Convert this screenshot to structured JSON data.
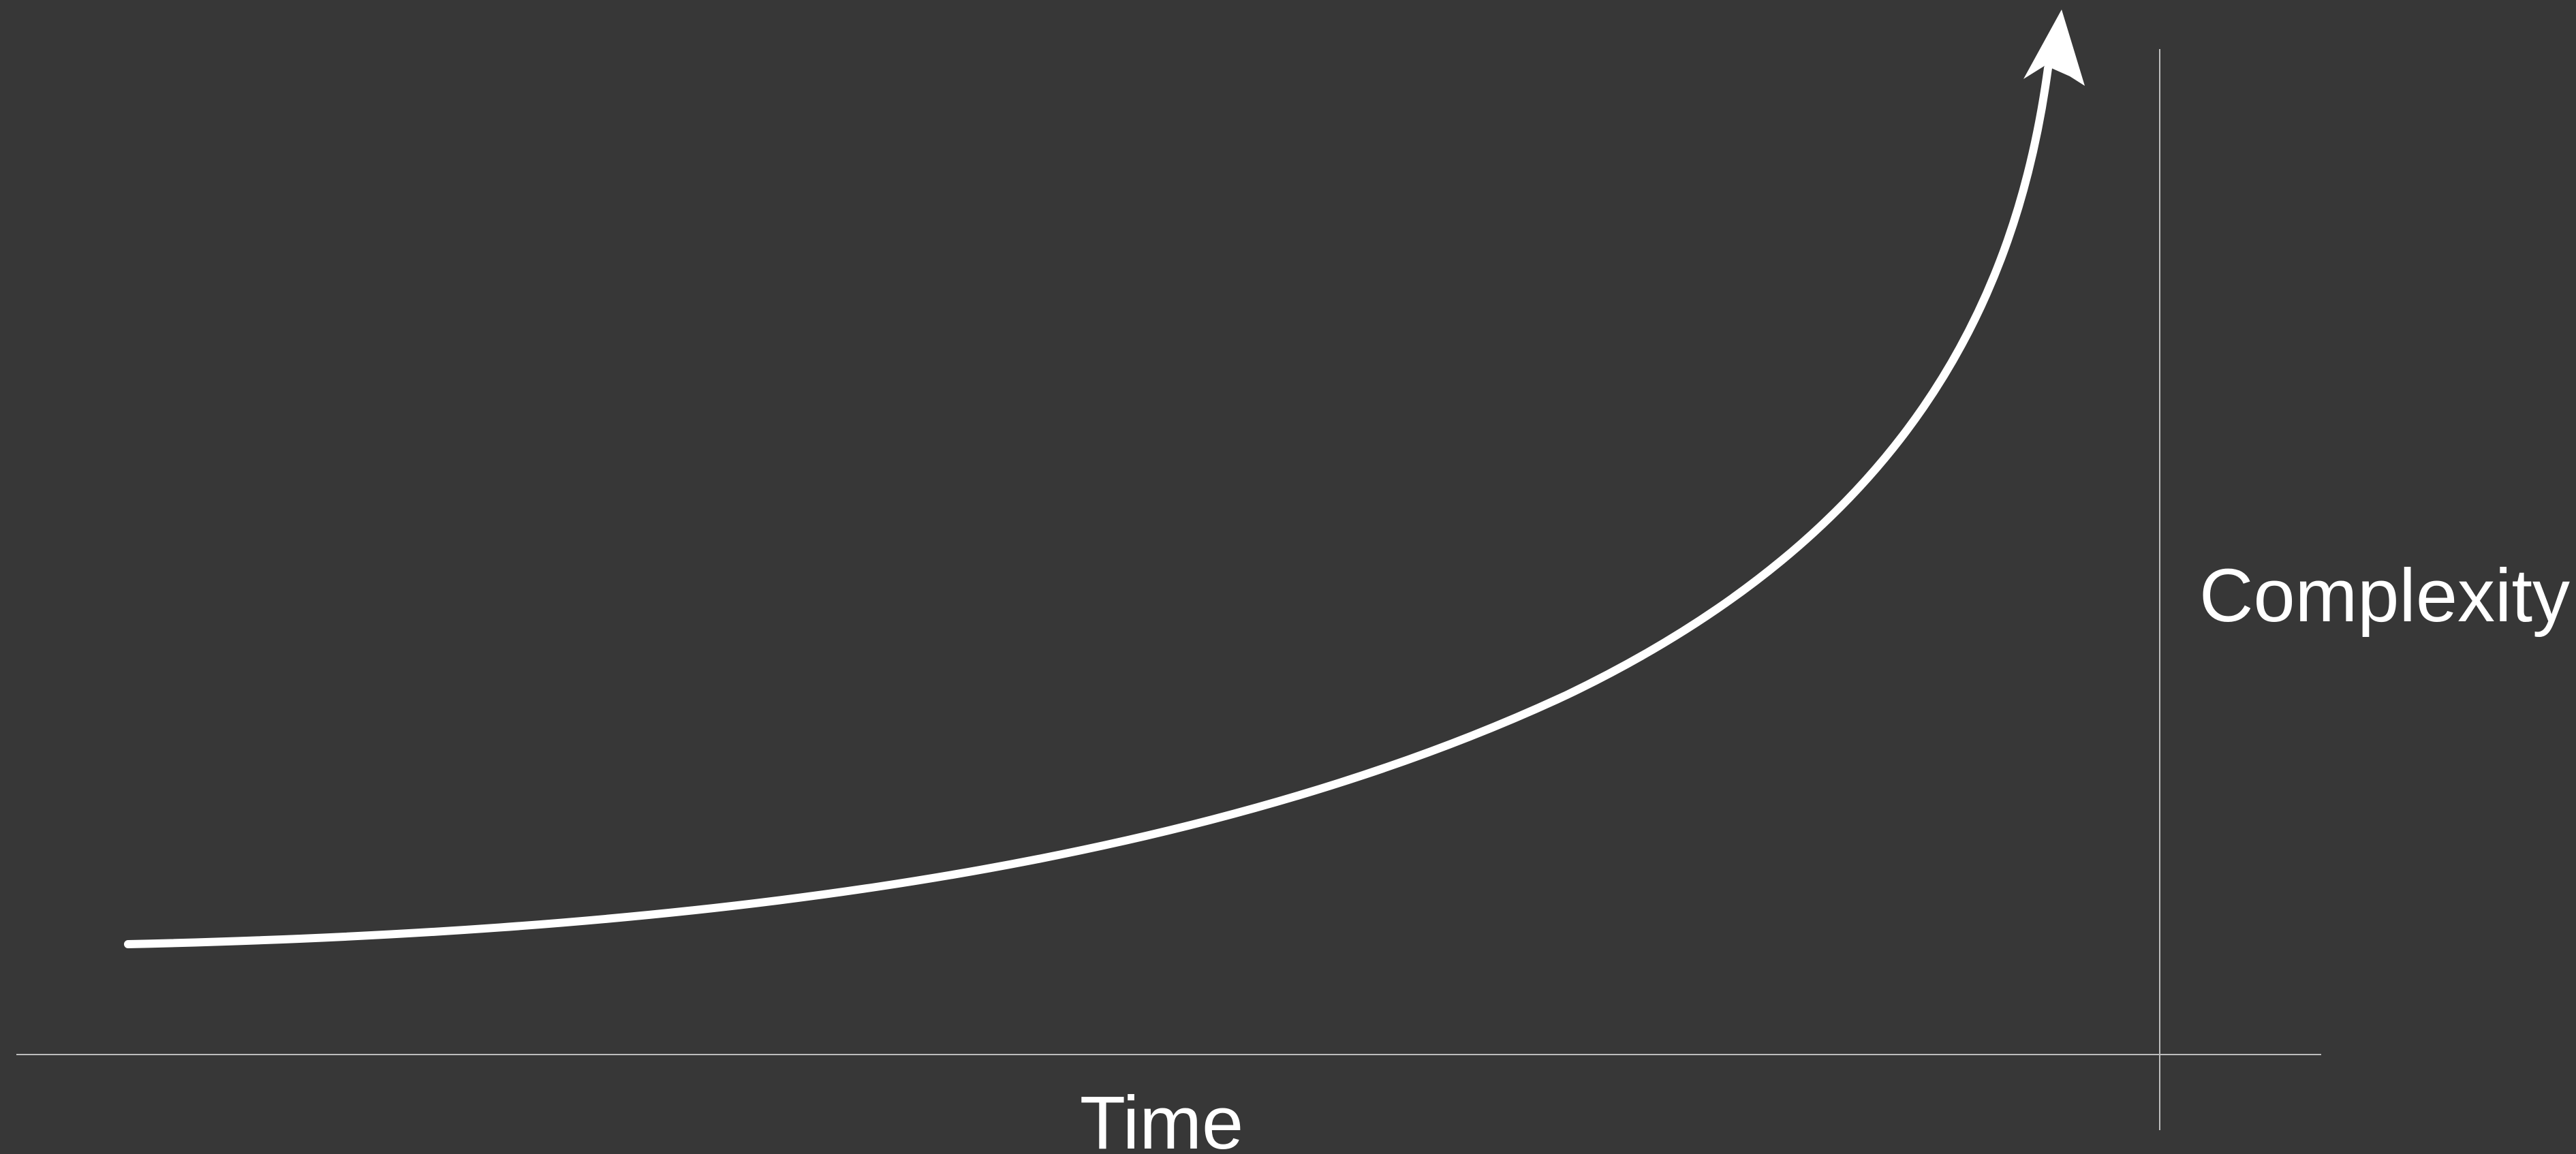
{
  "labels": {
    "x_axis": "Time",
    "y_axis": "Complexity"
  }
}
